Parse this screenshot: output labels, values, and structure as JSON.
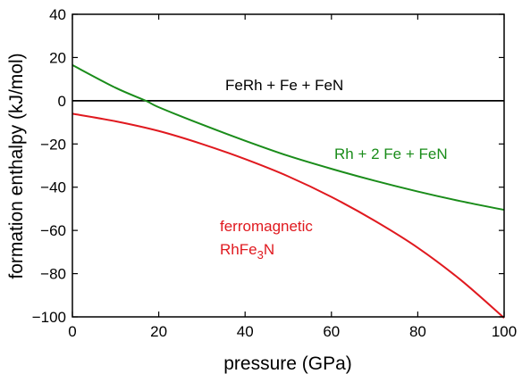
{
  "chart_data": {
    "type": "line",
    "xlabel": "pressure (GPa)",
    "ylabel": "formation enthalpy (kJ/mol)",
    "xlim": [
      0,
      100
    ],
    "ylim": [
      -100,
      40
    ],
    "xticks": [
      0,
      20,
      40,
      60,
      80,
      100
    ],
    "yticks": [
      40,
      20,
      0,
      -20,
      -40,
      -60,
      -80,
      -100
    ],
    "grid": false,
    "legend": "none",
    "series": [
      {
        "color": "#000000",
        "x": [
          0,
          100
        ],
        "y": [
          0,
          0
        ]
      },
      {
        "color": "#1a8c1a",
        "x": [
          0,
          10,
          17,
          20,
          30,
          40,
          50,
          60,
          70,
          80,
          90,
          100
        ],
        "y": [
          16.5,
          6.0,
          0,
          -3.0,
          -11.0,
          -18.5,
          -25.5,
          -31.5,
          -37.0,
          -42.0,
          -46.5,
          -50.5
        ]
      },
      {
        "color": "#e0191f",
        "x": [
          0,
          10,
          20,
          30,
          40,
          50,
          60,
          70,
          80,
          90,
          100
        ],
        "y": [
          -6.0,
          -9.5,
          -14.0,
          -20.0,
          -27.0,
          -35.0,
          -44.5,
          -55.5,
          -68.0,
          -83.0,
          -100.5
        ]
      }
    ],
    "annotations": [
      {
        "text": "FeRh + Fe + FeN",
        "color": "#000000"
      },
      {
        "text": "Rh + 2 Fe + FeN",
        "color": "#1a8c1a"
      },
      {
        "text": "ferromagnetic",
        "color": "#e0191f"
      },
      {
        "text": "RhFe",
        "sub": "3",
        "tail": "N",
        "color": "#e0191f"
      }
    ]
  }
}
